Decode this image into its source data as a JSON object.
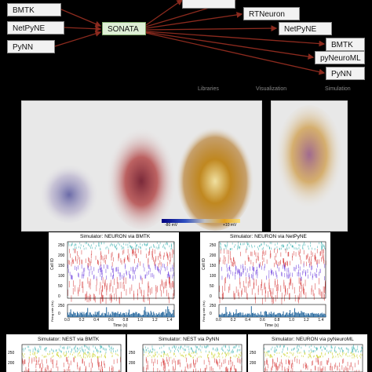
{
  "diagram": {
    "sources": [
      "BMTK",
      "NetPyNE",
      "PyNN"
    ],
    "hub": "SONATA",
    "targets": [
      "RTNeuron",
      "NetPyNE",
      "BMTK",
      "pyNeuroML",
      "PyNN"
    ],
    "categories": [
      "Libraries",
      "Visualization",
      "Simulation"
    ]
  },
  "colorbar": {
    "min_label": "-80 mV",
    "max_label": "+10 mV"
  },
  "rasters_row1": [
    {
      "title": "Simulator: NEURON via BMTK"
    },
    {
      "title": "Simulator: NEURON via NetPyNE"
    }
  ],
  "rasters_row2": [
    {
      "title": "Simulator: NEST via BMTK"
    },
    {
      "title": "Simulator: NEST via PyNN"
    },
    {
      "title": "Simulator: NEURON via pyNeuroML"
    }
  ],
  "axes": {
    "ylabel_top": "Cell ID",
    "ylabel_bottom": "Firing rate (Hz)",
    "xlabel": "Time (s)",
    "yticks": [
      "250",
      "200",
      "150",
      "100",
      "50",
      "0"
    ],
    "xticks": [
      "0.0",
      "0.2",
      "0.4",
      "0.6",
      "0.8",
      "1.0",
      "1.2",
      "1.4"
    ],
    "rate_ticks": [
      "250",
      "0"
    ]
  },
  "colors": {
    "arrow": "#8b2a1e",
    "excitatory": "#d63a3a",
    "inhibitory": "#6a3adc",
    "other": "#3ab0b0",
    "rate": "#2a6aa0"
  }
}
